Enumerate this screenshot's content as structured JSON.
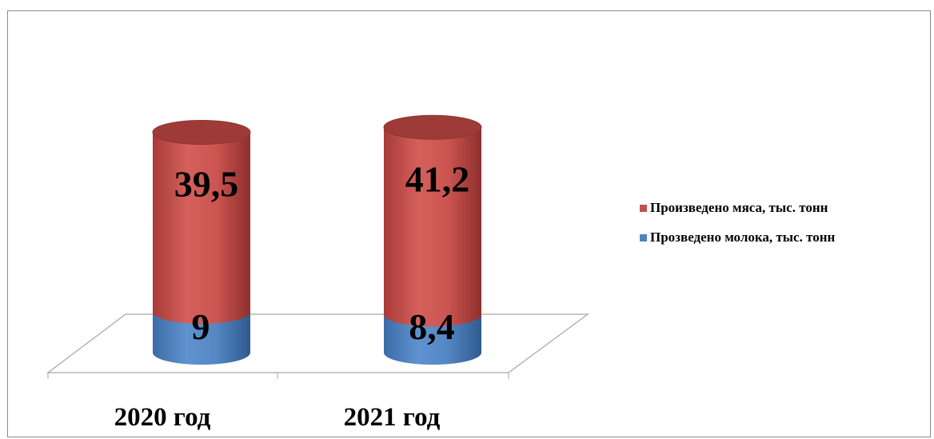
{
  "chart_data": {
    "type": "bar",
    "stacked": true,
    "style": "3d-cylinder",
    "categories": [
      "2020 год",
      "2021 год"
    ],
    "series": [
      {
        "name": "Прозведено молока, тыс. тонн",
        "values": [
          9,
          8.4
        ],
        "labels": [
          "9",
          "8,4"
        ],
        "color": "#4f81bd"
      },
      {
        "name": "Произведено мяса, тыс. тонн",
        "values": [
          39.5,
          41.2
        ],
        "labels": [
          "39,5",
          "41,2"
        ],
        "color": "#c0504d"
      }
    ],
    "legend": {
      "position": "right",
      "entries": [
        {
          "label": "Произведено мяса, тыс. тонн",
          "color": "#c0504d"
        },
        {
          "label": "Прозведено молока, тыс. тонн",
          "color": "#4f81bd"
        }
      ]
    },
    "grid": false,
    "data_labels": true
  }
}
